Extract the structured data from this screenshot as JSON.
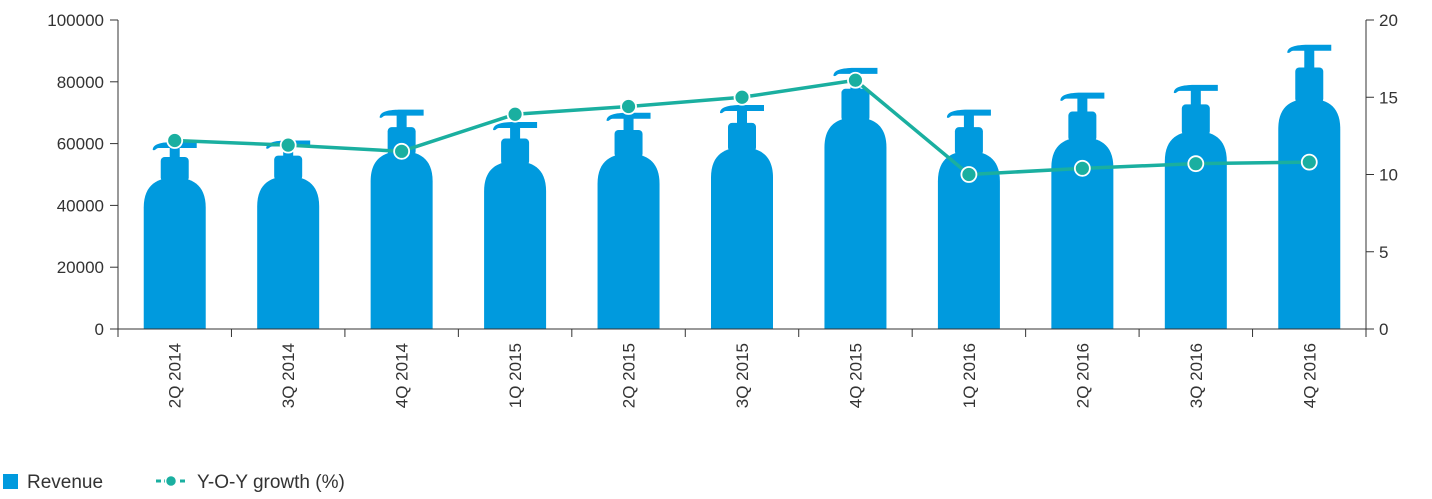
{
  "chart_data": {
    "type": "bar",
    "categories": [
      "2Q 2014",
      "3Q 2014",
      "4Q 2014",
      "1Q 2015",
      "2Q 2015",
      "3Q 2015",
      "4Q 2015",
      "1Q 2016",
      "2Q 2016",
      "3Q 2016",
      "4Q 2016"
    ],
    "series": [
      {
        "name": "Revenue",
        "type": "bar",
        "axis": "left",
        "color": "#009ade",
        "values": [
          60500,
          61000,
          71000,
          67000,
          70000,
          72500,
          84500,
          71000,
          76500,
          79000,
          92000
        ]
      },
      {
        "name": "Y-O-Y growth (%)",
        "type": "line",
        "axis": "right",
        "color": "#1aafa0",
        "values": [
          12.2,
          11.9,
          11.5,
          13.9,
          14.4,
          15.0,
          16.1,
          10.0,
          10.4,
          10.7,
          10.8
        ]
      }
    ],
    "y_left": {
      "min": 0,
      "max": 100000,
      "ticks": [
        "0",
        "20000",
        "40000",
        "60000",
        "80000",
        "100000"
      ]
    },
    "y_right": {
      "min": 0,
      "max": 20,
      "ticks": [
        "0",
        "5",
        "10",
        "15",
        "20"
      ]
    },
    "legend_position": "bottom-left",
    "bar_shape": "pump-bottle",
    "title": "",
    "xlabel": "",
    "ylabel": ""
  }
}
